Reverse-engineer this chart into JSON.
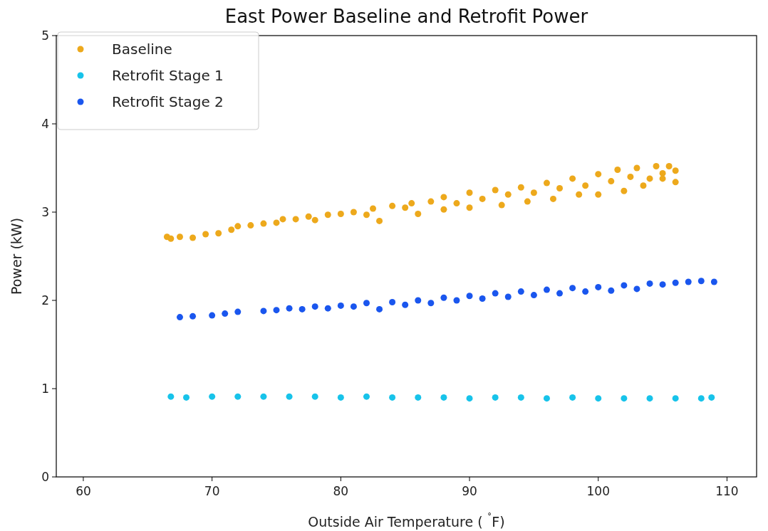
{
  "chart_data": {
    "type": "scatter",
    "title": "East Power Baseline and Retrofit Power",
    "xlabel": "Outside Air Temperature ( $^{˚}$F)",
    "ylabel": "Power (kW)",
    "xlim": [
      57.9,
      112.3
    ],
    "xticks": [
      60,
      70,
      80,
      90,
      100,
      110
    ],
    "ylim": [
      0,
      5
    ],
    "yticks": [
      0,
      1,
      2,
      3,
      4,
      5
    ],
    "grid": false,
    "legend": "top left",
    "marker": "circle",
    "series": [
      {
        "name": "Baseline",
        "color": "#eda91c",
        "x": [
          66.5,
          66.8,
          67.5,
          68.5,
          69.5,
          70.5,
          71.5,
          72,
          73,
          74,
          75,
          75.5,
          76.5,
          77.5,
          78,
          79,
          80,
          81,
          82,
          83,
          82.5,
          84,
          85,
          85.5,
          86,
          87,
          88,
          88,
          89,
          90,
          90,
          91,
          92,
          92.5,
          93,
          94,
          94.5,
          95,
          96,
          96.5,
          97,
          98,
          98.5,
          99,
          100,
          100,
          101,
          101.5,
          102,
          102.5,
          103,
          103.5,
          104,
          104.5,
          105,
          105,
          105.5,
          106,
          106
        ],
        "values": [
          2.72,
          2.7,
          2.72,
          2.71,
          2.75,
          2.76,
          2.8,
          2.84,
          2.85,
          2.87,
          2.88,
          2.92,
          2.92,
          2.95,
          2.91,
          2.97,
          2.98,
          3.0,
          2.97,
          2.9,
          3.04,
          3.07,
          3.05,
          3.1,
          2.98,
          3.12,
          3.03,
          3.17,
          3.1,
          3.05,
          3.22,
          3.15,
          3.25,
          3.08,
          3.2,
          3.28,
          3.12,
          3.22,
          3.33,
          3.15,
          3.27,
          3.38,
          3.2,
          3.3,
          3.43,
          3.2,
          3.35,
          3.48,
          3.24,
          3.4,
          3.5,
          3.3,
          3.38,
          3.52,
          3.44,
          3.38,
          3.52,
          3.47,
          3.34
        ]
      },
      {
        "name": "Retrofit Stage 1",
        "color": "#17c3ea",
        "x": [
          66.8,
          68,
          70,
          72,
          74,
          76,
          78,
          80,
          82,
          84,
          86,
          88,
          90,
          92,
          94,
          96,
          98,
          100,
          102,
          104,
          106,
          108,
          108.8
        ],
        "values": [
          0.91,
          0.9,
          0.91,
          0.91,
          0.91,
          0.91,
          0.91,
          0.9,
          0.91,
          0.9,
          0.9,
          0.9,
          0.89,
          0.9,
          0.9,
          0.89,
          0.9,
          0.89,
          0.89,
          0.89,
          0.89,
          0.89,
          0.9
        ]
      },
      {
        "name": "Retrofit Stage 2",
        "color": "#1a56ee",
        "x": [
          67.5,
          68.5,
          70,
          71,
          72,
          74,
          75,
          76,
          77,
          78,
          79,
          80,
          81,
          82,
          83,
          84,
          85,
          86,
          87,
          88,
          89,
          90,
          91,
          92,
          93,
          94,
          95,
          96,
          97,
          98,
          99,
          100,
          101,
          102,
          103,
          104,
          105,
          106,
          107,
          108,
          109
        ],
        "values": [
          1.81,
          1.82,
          1.83,
          1.85,
          1.87,
          1.88,
          1.89,
          1.91,
          1.9,
          1.93,
          1.91,
          1.94,
          1.93,
          1.97,
          1.9,
          1.98,
          1.95,
          2.0,
          1.97,
          2.03,
          2.0,
          2.05,
          2.02,
          2.08,
          2.04,
          2.1,
          2.06,
          2.12,
          2.08,
          2.14,
          2.1,
          2.15,
          2.11,
          2.17,
          2.13,
          2.19,
          2.18,
          2.2,
          2.21,
          2.22,
          2.21
        ]
      }
    ]
  }
}
